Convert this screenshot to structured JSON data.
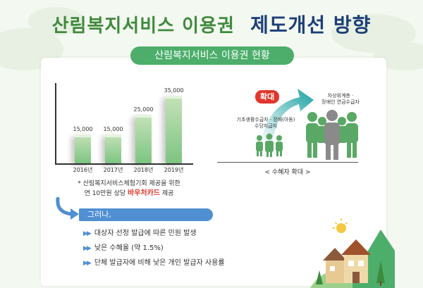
{
  "header": {
    "title_part1": "산림복지서비스 이용권",
    "title_part2": "제도개선 방향"
  },
  "section": {
    "pill_label": "산림복지서비스 이용권 현황"
  },
  "chart_data": {
    "type": "bar",
    "categories": [
      "2016년",
      "2017년",
      "2018년",
      "2019년"
    ],
    "values": [
      15000,
      15000,
      25000,
      35000
    ],
    "value_labels": [
      "15,000",
      "15,000",
      "25,000",
      "35,000"
    ],
    "ylim": [
      0,
      40000
    ],
    "grid": false
  },
  "note": {
    "line1": "* 산림복지서비스체험기회 제공을 위한",
    "line2_prefix": "연 10만원 상당 ",
    "line2_highlight": "바우처카드",
    "line2_suffix": " 제공"
  },
  "however": {
    "label": "그러나,"
  },
  "issues": [
    {
      "marker": "▶▶",
      "text": "대상자 선정 발급에 따른 민원 발생"
    },
    {
      "marker": "▶▶",
      "text": "낮은 수혜율 (약 1.5%)"
    },
    {
      "marker": "▶▶",
      "text": "단체 발급자에 비해 낮은 개인 발급자 사용률"
    }
  ],
  "beneficiary": {
    "badge": "확대",
    "from_line1": "기초생활수급자 · 장애(아동)",
    "from_line2": "수당지급자",
    "to_line1": "차상위계층 ·",
    "to_line2": "장애인 연금수급자",
    "caption": "< 수혜자 확대 >"
  },
  "colors": {
    "title_green": "#3f8a3c",
    "title_navy": "#1d3f78",
    "pill_green": "#4cae6a",
    "bar_green": "#7dc482",
    "highlight_red": "#e2362b",
    "however_blue": "#4f8fd2",
    "people_green": "#5aa865",
    "people_gray": "#8a8a8a"
  },
  "icons": [
    "people-small-icon",
    "people-large-icon",
    "curved-arrow-icon",
    "sun-icon",
    "house-icon",
    "tree-icon"
  ]
}
